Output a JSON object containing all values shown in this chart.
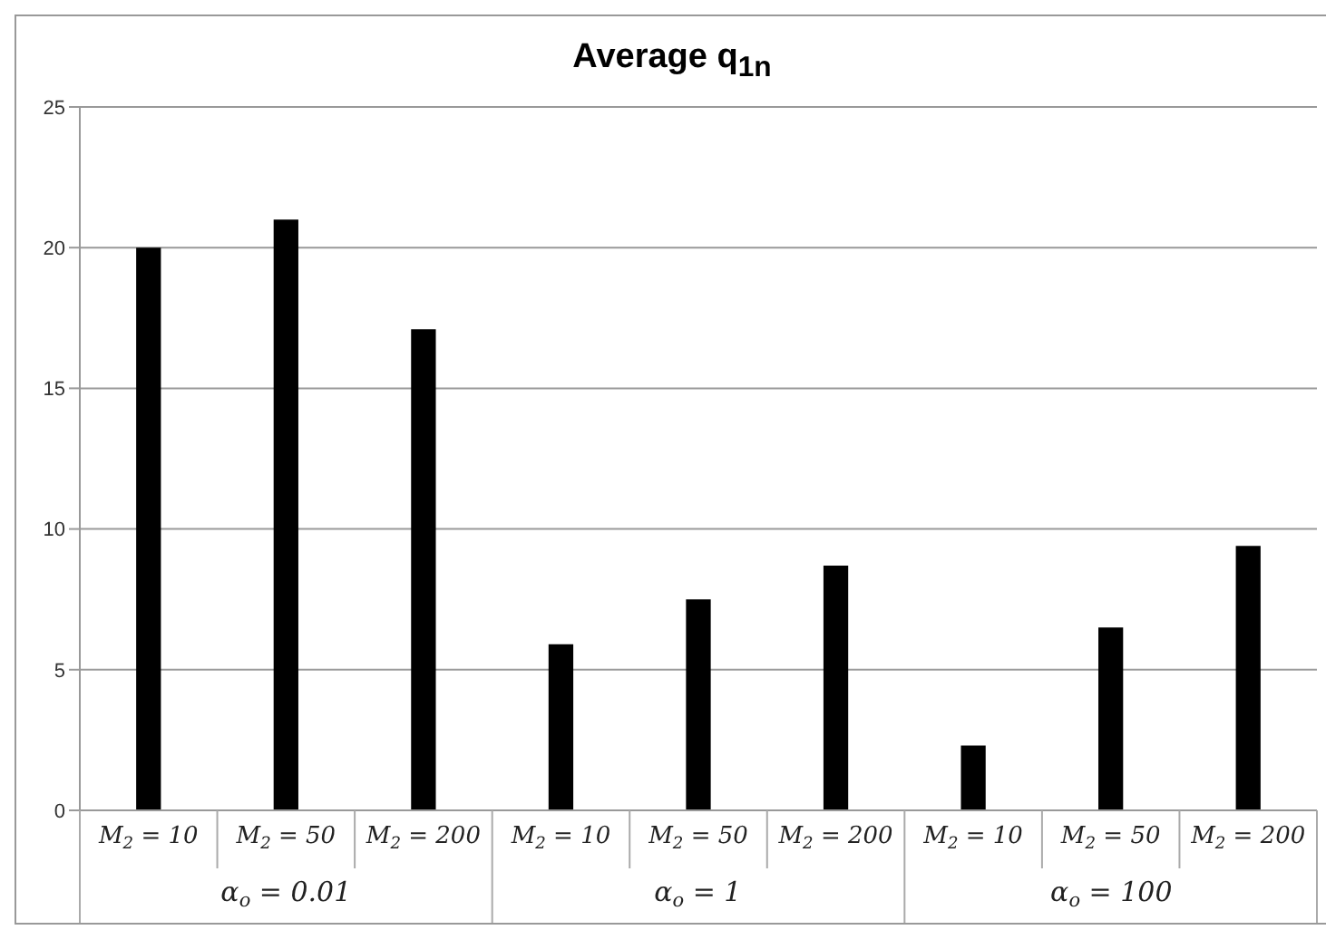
{
  "chart_data": {
    "type": "bar",
    "title": "Average q$_{1n}$",
    "categories": [
      "M$_{2}$ = 10",
      "M$_{2}$ = 50",
      "M$_{2}$ = 200",
      "M$_{2}$ = 10",
      "M$_{2}$ = 50",
      "M$_{2}$ = 200",
      "M$_{2}$ = 10",
      "M$_{2}$ = 50",
      "M$_{2}$ = 200"
    ],
    "values": [
      20.0,
      21.0,
      17.1,
      5.9,
      7.5,
      8.7,
      2.3,
      6.5,
      9.4
    ],
    "color": "#000000",
    "ylim": [
      0,
      25
    ],
    "yticks": [
      0,
      5,
      10,
      15,
      20,
      25
    ],
    "grid": "y",
    "annotations": [
      "α$_{o}$ = 0.01",
      "α$_{o}$ = 1",
      "α$_{o}$ = 100"
    ]
  }
}
